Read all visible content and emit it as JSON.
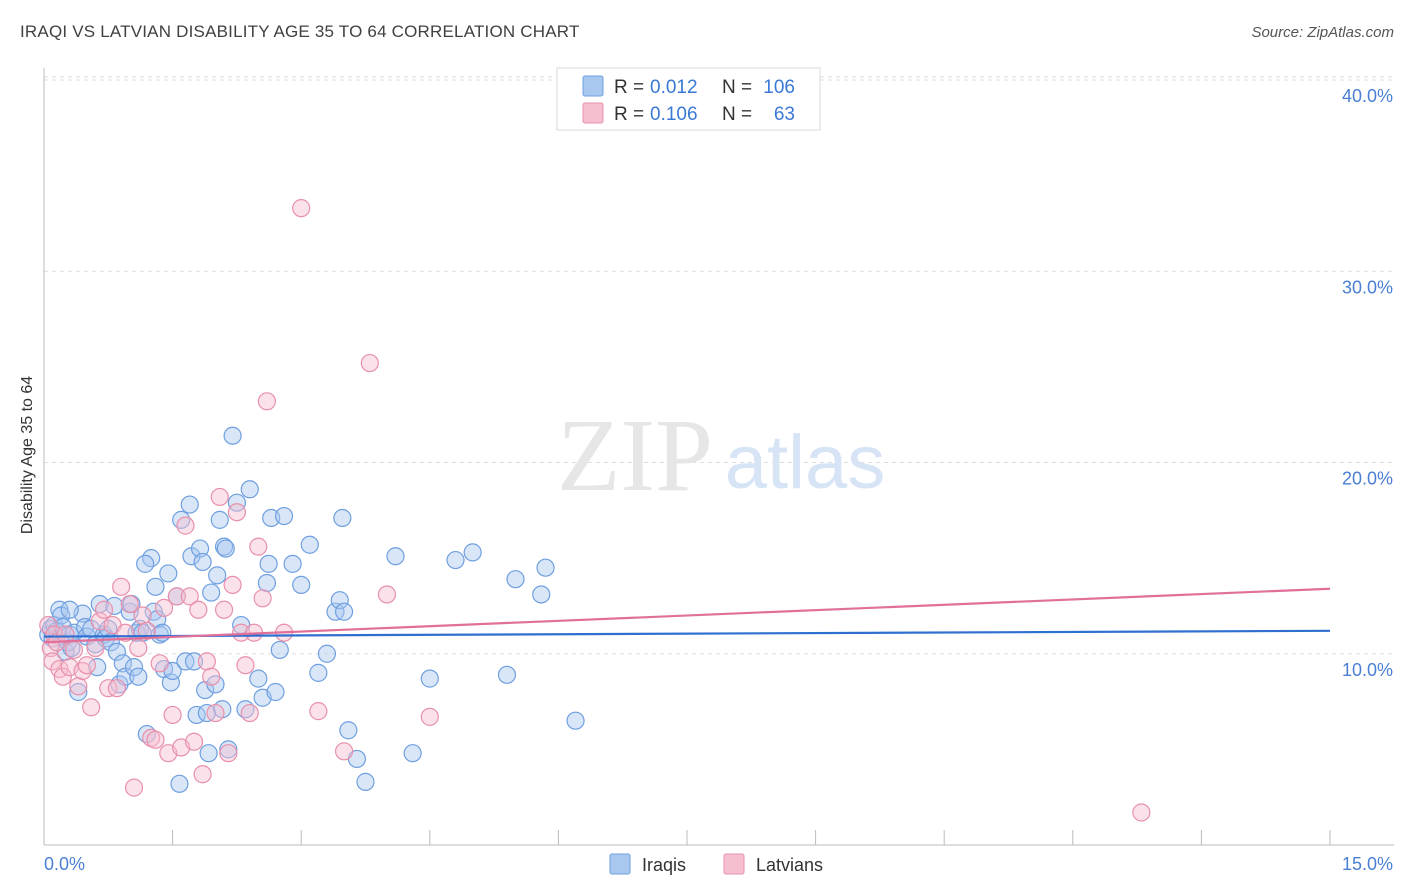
{
  "header": {
    "title": "IRAQI VS LATVIAN DISABILITY AGE 35 TO 64 CORRELATION CHART",
    "source": "Source: ZipAtlas.com"
  },
  "watermark": {
    "zip": "ZIP",
    "atlas": "atlas"
  },
  "legend_top": {
    "rows": [
      {
        "r_label": "R = ",
        "r_value": "0.012",
        "n_label": "N = ",
        "n_value": "106",
        "color": "#a9c8f0",
        "stroke": "#6f9fe0"
      },
      {
        "r_label": "R = ",
        "r_value": "0.106",
        "n_label": "N = ",
        "n_value": "63",
        "color": "#f6bfd0",
        "stroke": "#e890ab"
      }
    ]
  },
  "legend_bottom": {
    "items": [
      "Iraqis",
      "Latvians"
    ]
  },
  "chart_data": {
    "type": "scatter",
    "title": "IRAQI VS LATVIAN DISABILITY AGE 35 TO 64 CORRELATION CHART",
    "xlabel": "",
    "ylabel": "Disability Age 35 to 64",
    "xlim": [
      0,
      15
    ],
    "ylim": [
      0,
      40
    ],
    "x_tick_labels": [
      "0.0%",
      "15.0%"
    ],
    "y_ticks": [
      10,
      20,
      30,
      40
    ],
    "y_tick_labels": [
      "10.0%",
      "20.0%",
      "30.0%",
      "40.0%"
    ],
    "grid": true,
    "legend_position": "top-center",
    "series": [
      {
        "name": "Iraqis",
        "color": "#a9c8f0",
        "stroke": "#6f9fe0",
        "trend_color": "#2f6fd0",
        "trend": {
          "x": [
            0,
            15
          ],
          "y": [
            10.9,
            11.2
          ]
        },
        "points": [
          [
            0.05,
            11.0
          ],
          [
            0.08,
            11.3
          ],
          [
            0.1,
            10.8
          ],
          [
            0.12,
            11.5
          ],
          [
            0.15,
            11.2
          ],
          [
            0.18,
            12.3
          ],
          [
            0.2,
            12.0
          ],
          [
            0.22,
            11.4
          ],
          [
            0.25,
            10.1
          ],
          [
            0.28,
            10.6
          ],
          [
            0.3,
            11.0
          ],
          [
            0.32,
            10.3
          ],
          [
            0.35,
            11.1
          ],
          [
            0.4,
            8.0
          ],
          [
            0.45,
            12.1
          ],
          [
            0.48,
            11.4
          ],
          [
            0.5,
            10.9
          ],
          [
            0.55,
            11.3
          ],
          [
            0.6,
            10.5
          ],
          [
            0.62,
            9.3
          ],
          [
            0.65,
            12.6
          ],
          [
            0.7,
            11.0
          ],
          [
            0.72,
            10.8
          ],
          [
            0.75,
            11.3
          ],
          [
            0.78,
            10.6
          ],
          [
            0.82,
            12.5
          ],
          [
            0.85,
            10.1
          ],
          [
            0.88,
            8.4
          ],
          [
            0.92,
            9.5
          ],
          [
            0.95,
            8.8
          ],
          [
            1.0,
            12.2
          ],
          [
            1.02,
            12.6
          ],
          [
            1.05,
            9.3
          ],
          [
            1.08,
            11.1
          ],
          [
            1.1,
            8.8
          ],
          [
            1.12,
            11.3
          ],
          [
            1.15,
            11.1
          ],
          [
            1.2,
            5.8
          ],
          [
            1.25,
            15.0
          ],
          [
            1.28,
            12.2
          ],
          [
            1.3,
            13.5
          ],
          [
            1.32,
            11.8
          ],
          [
            1.35,
            11.0
          ],
          [
            1.38,
            11.1
          ],
          [
            1.4,
            9.2
          ],
          [
            1.45,
            14.2
          ],
          [
            1.48,
            8.5
          ],
          [
            1.5,
            9.1
          ],
          [
            1.55,
            13.0
          ],
          [
            1.58,
            3.2
          ],
          [
            1.6,
            17.0
          ],
          [
            1.65,
            9.6
          ],
          [
            1.7,
            17.8
          ],
          [
            1.72,
            15.1
          ],
          [
            1.75,
            9.6
          ],
          [
            1.78,
            6.8
          ],
          [
            1.82,
            15.5
          ],
          [
            1.85,
            14.8
          ],
          [
            1.88,
            8.1
          ],
          [
            1.9,
            6.9
          ],
          [
            1.92,
            4.8
          ],
          [
            1.95,
            13.2
          ],
          [
            2.0,
            8.4
          ],
          [
            2.02,
            14.1
          ],
          [
            2.05,
            17.0
          ],
          [
            2.08,
            7.1
          ],
          [
            2.1,
            15.6
          ],
          [
            2.12,
            15.5
          ],
          [
            2.15,
            5.0
          ],
          [
            2.2,
            21.4
          ],
          [
            2.25,
            17.9
          ],
          [
            2.3,
            11.5
          ],
          [
            2.35,
            7.1
          ],
          [
            2.4,
            18.6
          ],
          [
            2.5,
            8.7
          ],
          [
            2.55,
            7.7
          ],
          [
            2.6,
            13.7
          ],
          [
            2.62,
            14.7
          ],
          [
            2.65,
            17.1
          ],
          [
            2.7,
            8.0
          ],
          [
            2.75,
            10.2
          ],
          [
            2.8,
            17.2
          ],
          [
            2.9,
            14.7
          ],
          [
            3.0,
            13.6
          ],
          [
            3.1,
            15.7
          ],
          [
            3.2,
            9.0
          ],
          [
            3.3,
            10.0
          ],
          [
            3.4,
            12.2
          ],
          [
            3.45,
            12.8
          ],
          [
            3.48,
            17.1
          ],
          [
            3.5,
            12.2
          ],
          [
            3.55,
            6.0
          ],
          [
            3.65,
            4.5
          ],
          [
            3.75,
            3.3
          ],
          [
            4.1,
            15.1
          ],
          [
            4.3,
            4.8
          ],
          [
            4.5,
            8.7
          ],
          [
            4.8,
            14.9
          ],
          [
            5.0,
            15.3
          ],
          [
            5.4,
            8.9
          ],
          [
            5.5,
            13.9
          ],
          [
            5.8,
            13.1
          ],
          [
            5.85,
            14.5
          ],
          [
            6.2,
            6.5
          ],
          [
            0.3,
            12.3
          ],
          [
            1.18,
            14.7
          ]
        ]
      },
      {
        "name": "Latvians",
        "color": "#f6bfd0",
        "stroke": "#e890ab",
        "trend_color": "#e0709a",
        "trend": {
          "x": [
            0,
            15
          ],
          "y": [
            10.6,
            13.4
          ]
        },
        "points": [
          [
            0.05,
            11.5
          ],
          [
            0.08,
            10.3
          ],
          [
            0.1,
            9.6
          ],
          [
            0.12,
            11.0
          ],
          [
            0.15,
            10.6
          ],
          [
            0.18,
            9.2
          ],
          [
            0.22,
            8.8
          ],
          [
            0.25,
            11.0
          ],
          [
            0.3,
            9.3
          ],
          [
            0.35,
            10.2
          ],
          [
            0.4,
            8.3
          ],
          [
            0.45,
            9.1
          ],
          [
            0.5,
            9.4
          ],
          [
            0.55,
            7.2
          ],
          [
            0.6,
            10.3
          ],
          [
            0.65,
            11.7
          ],
          [
            0.7,
            12.3
          ],
          [
            0.75,
            8.2
          ],
          [
            0.8,
            11.5
          ],
          [
            0.85,
            8.2
          ],
          [
            0.9,
            13.5
          ],
          [
            0.95,
            11.1
          ],
          [
            1.0,
            12.6
          ],
          [
            1.05,
            3.0
          ],
          [
            1.1,
            10.3
          ],
          [
            1.15,
            12.0
          ],
          [
            1.2,
            11.2
          ],
          [
            1.25,
            5.6
          ],
          [
            1.3,
            5.5
          ],
          [
            1.35,
            9.5
          ],
          [
            1.4,
            12.4
          ],
          [
            1.45,
            4.8
          ],
          [
            1.5,
            6.8
          ],
          [
            1.55,
            13.0
          ],
          [
            1.6,
            5.1
          ],
          [
            1.65,
            16.7
          ],
          [
            1.7,
            13.0
          ],
          [
            1.75,
            5.4
          ],
          [
            1.8,
            12.3
          ],
          [
            1.85,
            3.7
          ],
          [
            1.9,
            9.6
          ],
          [
            1.95,
            8.8
          ],
          [
            2.0,
            6.9
          ],
          [
            2.05,
            18.2
          ],
          [
            2.1,
            12.3
          ],
          [
            2.15,
            4.8
          ],
          [
            2.2,
            13.6
          ],
          [
            2.25,
            17.4
          ],
          [
            2.3,
            11.1
          ],
          [
            2.35,
            9.4
          ],
          [
            2.4,
            6.9
          ],
          [
            2.45,
            11.1
          ],
          [
            2.5,
            15.6
          ],
          [
            2.55,
            12.9
          ],
          [
            2.6,
            23.2
          ],
          [
            2.8,
            11.1
          ],
          [
            3.0,
            33.3
          ],
          [
            3.2,
            7.0
          ],
          [
            3.5,
            4.9
          ],
          [
            3.8,
            25.2
          ],
          [
            4.0,
            13.1
          ],
          [
            4.5,
            6.7
          ],
          [
            12.8,
            1.7
          ]
        ]
      }
    ]
  }
}
